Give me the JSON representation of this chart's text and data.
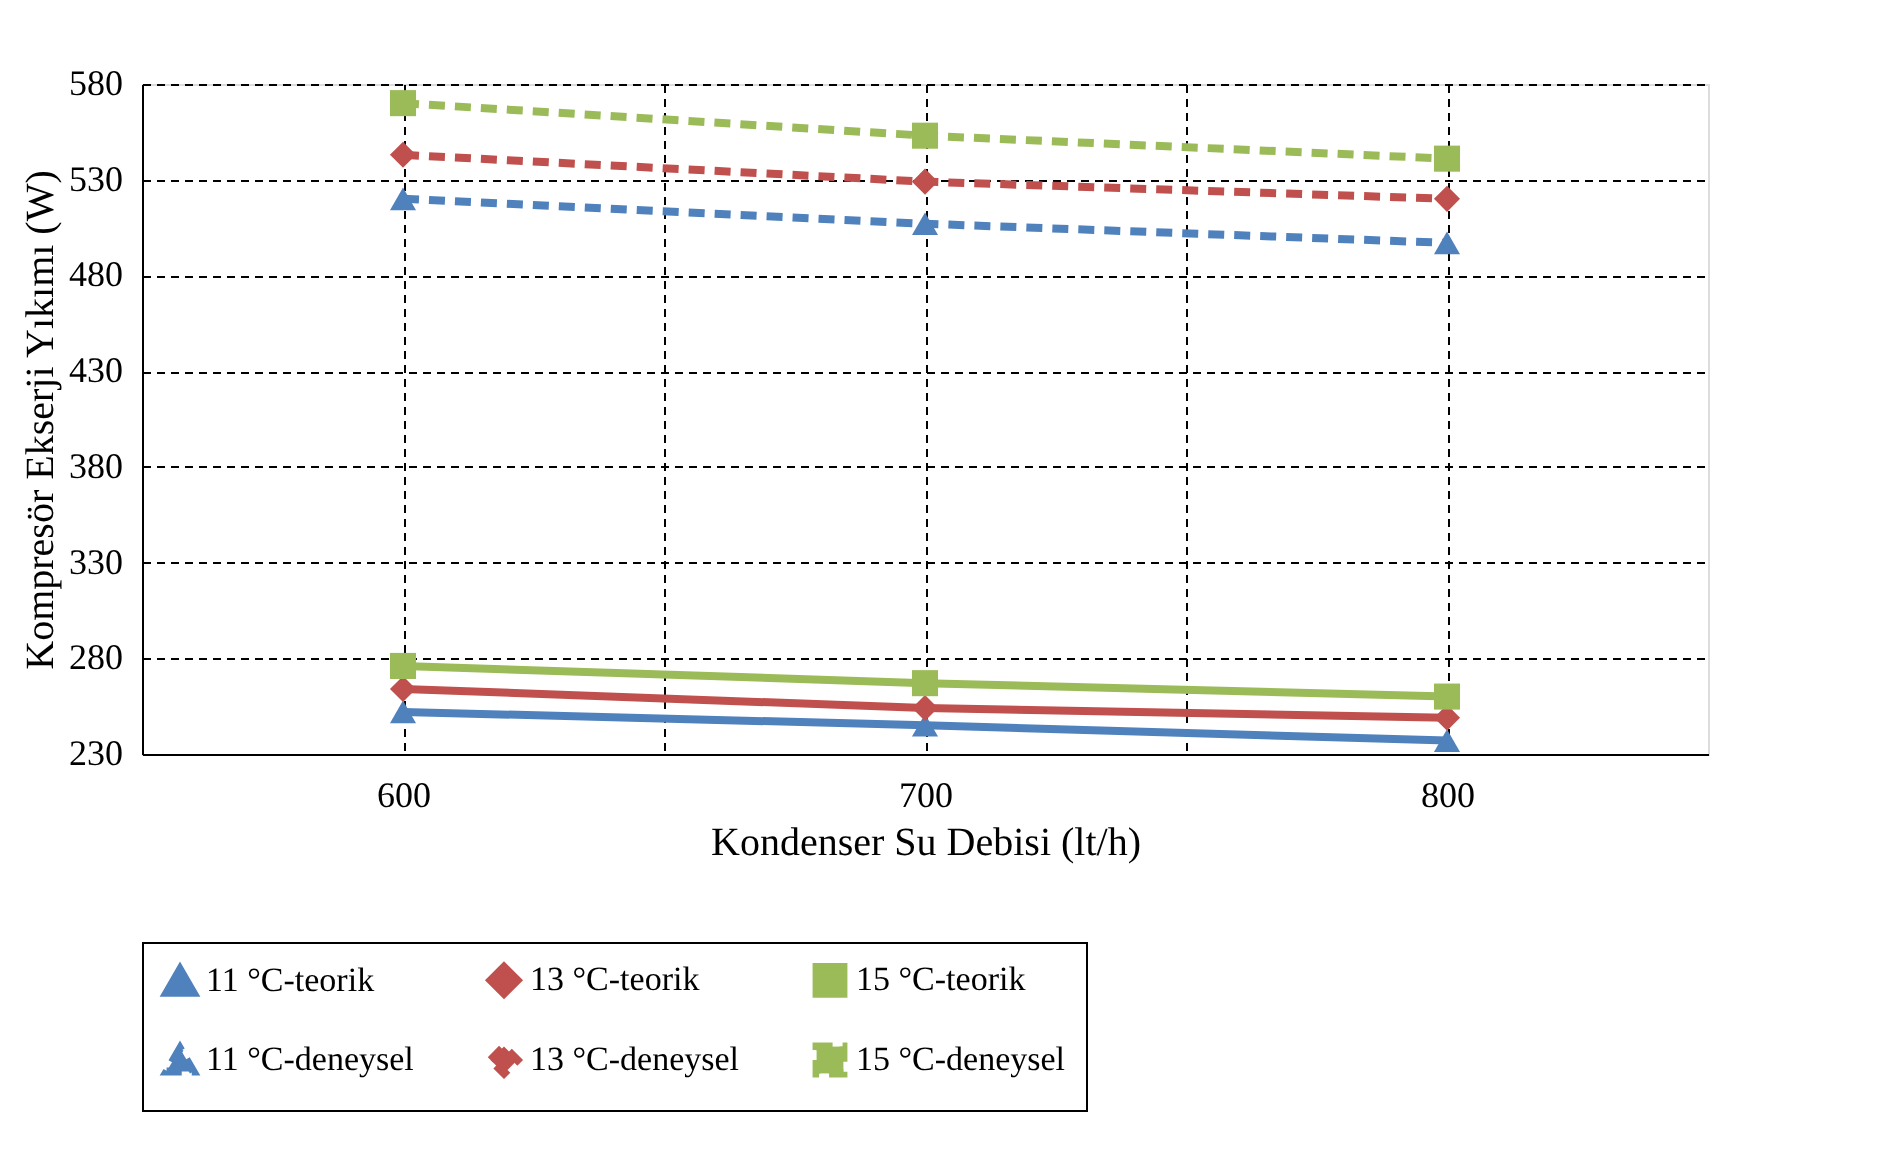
{
  "chart_data": {
    "type": "line",
    "xlabel": "Kondenser Su Debisi (lt/h)",
    "ylabel": "Kompresör Ekserji Yıkımı (W)",
    "x": [
      600,
      700,
      800
    ],
    "xlim": [
      550,
      850
    ],
    "xticks": [
      600,
      {
        "value": 650,
        "label": null
      },
      700,
      {
        "value": 750,
        "label": null
      },
      800
    ],
    "ylim": [
      230,
      580
    ],
    "yticks": [
      230,
      280,
      330,
      380,
      430,
      480,
      530,
      580
    ],
    "grid": true,
    "legend": "bottom",
    "series": [
      {
        "name": "11 °C-teorik",
        "color": "#4f81bd",
        "marker": "triangle",
        "line_style": "solid",
        "values": [
          252,
          245,
          237
        ]
      },
      {
        "name": "13 °C-teorik",
        "color": "#c0504d",
        "marker": "diamond",
        "line_style": "solid",
        "values": [
          264,
          254,
          249
        ]
      },
      {
        "name": "15 °C-teorik",
        "color": "#9bbb59",
        "marker": "square",
        "line_style": "solid",
        "values": [
          276,
          267,
          260
        ]
      },
      {
        "name": "11 °C-deneysel",
        "color": "#4f81bd",
        "marker": "triangle",
        "line_style": "dashed",
        "values": [
          520,
          507,
          497
        ]
      },
      {
        "name": "13 °C-deneysel",
        "color": "#c0504d",
        "marker": "diamond",
        "line_style": "dashed",
        "values": [
          543,
          529,
          520
        ]
      },
      {
        "name": "15 °C-deneysel",
        "color": "#9bbb59",
        "marker": "square",
        "line_style": "dashed",
        "values": [
          570,
          553,
          541
        ]
      }
    ]
  }
}
